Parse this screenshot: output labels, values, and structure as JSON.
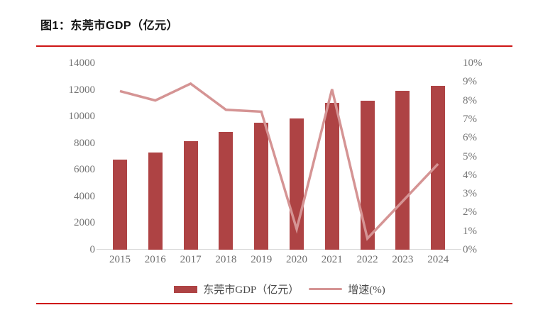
{
  "title": "图1：东莞市GDP（亿元）",
  "colors": {
    "bar": "#AE4344",
    "line": "#D59494",
    "rule": "#CE1515",
    "axis_line": "#D9D9D9",
    "tick_text": "#757575"
  },
  "chart_data": {
    "type": "bar+line",
    "title": "图1：东莞市GDP（亿元）",
    "categories": [
      "2015",
      "2016",
      "2017",
      "2018",
      "2019",
      "2020",
      "2021",
      "2022",
      "2023",
      "2024"
    ],
    "series": [
      {
        "name": "东莞市GDP（亿元）",
        "type": "bar",
        "axis": "left",
        "color": "#AE4344",
        "values": [
          6750,
          7320,
          8160,
          8840,
          9550,
          9850,
          11000,
          11200,
          11930,
          12280
        ]
      },
      {
        "name": "增速(%)",
        "type": "line",
        "axis": "right",
        "color": "#D59494",
        "values": [
          8.5,
          8.0,
          8.9,
          7.5,
          7.4,
          1.1,
          8.6,
          0.6,
          2.6,
          4.6
        ]
      }
    ],
    "left_axis": {
      "min": 0,
      "max": 14000,
      "step": 2000,
      "ticks": [
        "0",
        "2000",
        "4000",
        "6000",
        "8000",
        "10000",
        "12000",
        "14000"
      ]
    },
    "right_axis": {
      "min": 0,
      "max": 10,
      "step": 1,
      "suffix": "%",
      "ticks": [
        "0%",
        "1%",
        "2%",
        "3%",
        "4%",
        "5%",
        "6%",
        "7%",
        "8%",
        "9%",
        "10%"
      ]
    },
    "grid": false,
    "legend_position": "bottom"
  },
  "legend": {
    "gdp_label": "东莞市GDP（亿元）",
    "growth_label": "增速(%)"
  }
}
